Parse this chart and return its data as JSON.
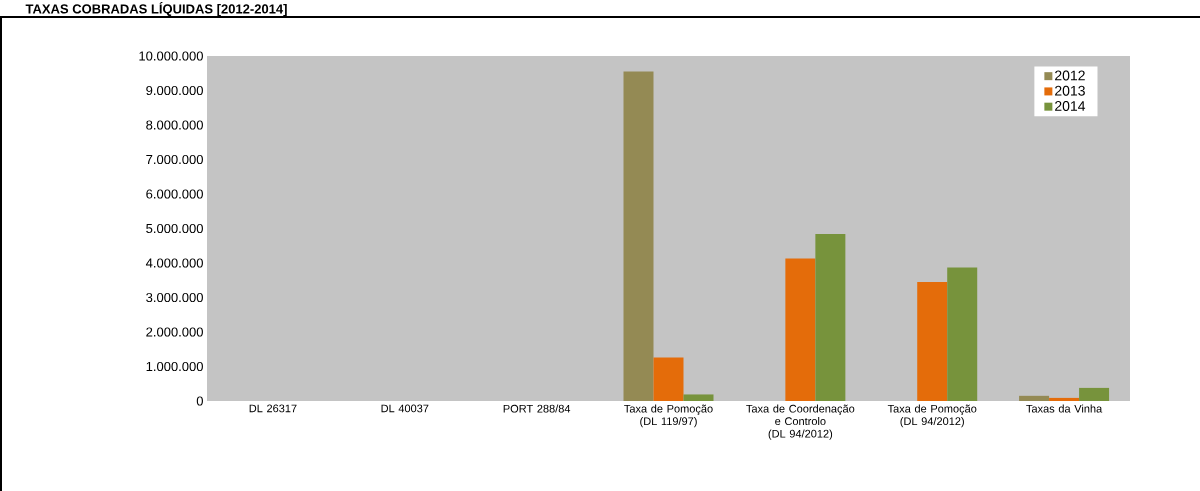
{
  "chart_data": {
    "type": "bar",
    "title": "TAXAS COBRADAS LÍQUIDAS [2012-2014]",
    "categories": [
      "DL 26317",
      "DL 40037",
      "PORT 288/84",
      "Taxa de Pomoção (DL 119/97)",
      "Taxa de Coordenação e Controlo (DL 94/2012)",
      "Taxa de Pomoção (DL 94/2012)",
      "Taxas da Vinha"
    ],
    "series": [
      {
        "name": "2012",
        "color": "#948a54",
        "values": [
          null,
          null,
          null,
          9550000,
          null,
          null,
          150000
        ]
      },
      {
        "name": "2013",
        "color": "#e46c0a",
        "values": [
          null,
          null,
          null,
          1260000,
          4130000,
          3450000,
          90000
        ]
      },
      {
        "name": "2014",
        "color": "#77933c",
        "values": [
          null,
          null,
          null,
          190000,
          4840000,
          3870000,
          380000
        ]
      }
    ],
    "ylim": [
      0,
      10000000
    ],
    "yticks": [
      {
        "value": 0,
        "label": "0"
      },
      {
        "value": 1000000,
        "label": "1.000.000"
      },
      {
        "value": 2000000,
        "label": "2.000.000"
      },
      {
        "value": 3000000,
        "label": "3.000.000"
      },
      {
        "value": 4000000,
        "label": "4.000.000"
      },
      {
        "value": 5000000,
        "label": "5.000.000"
      },
      {
        "value": 6000000,
        "label": "6.000.000"
      },
      {
        "value": 7000000,
        "label": "7.000.000"
      },
      {
        "value": 8000000,
        "label": "8.000.000"
      },
      {
        "value": 9000000,
        "label": "9.000.000"
      },
      {
        "value": 10000000,
        "label": "10.000.000"
      }
    ],
    "legend": "top right"
  }
}
